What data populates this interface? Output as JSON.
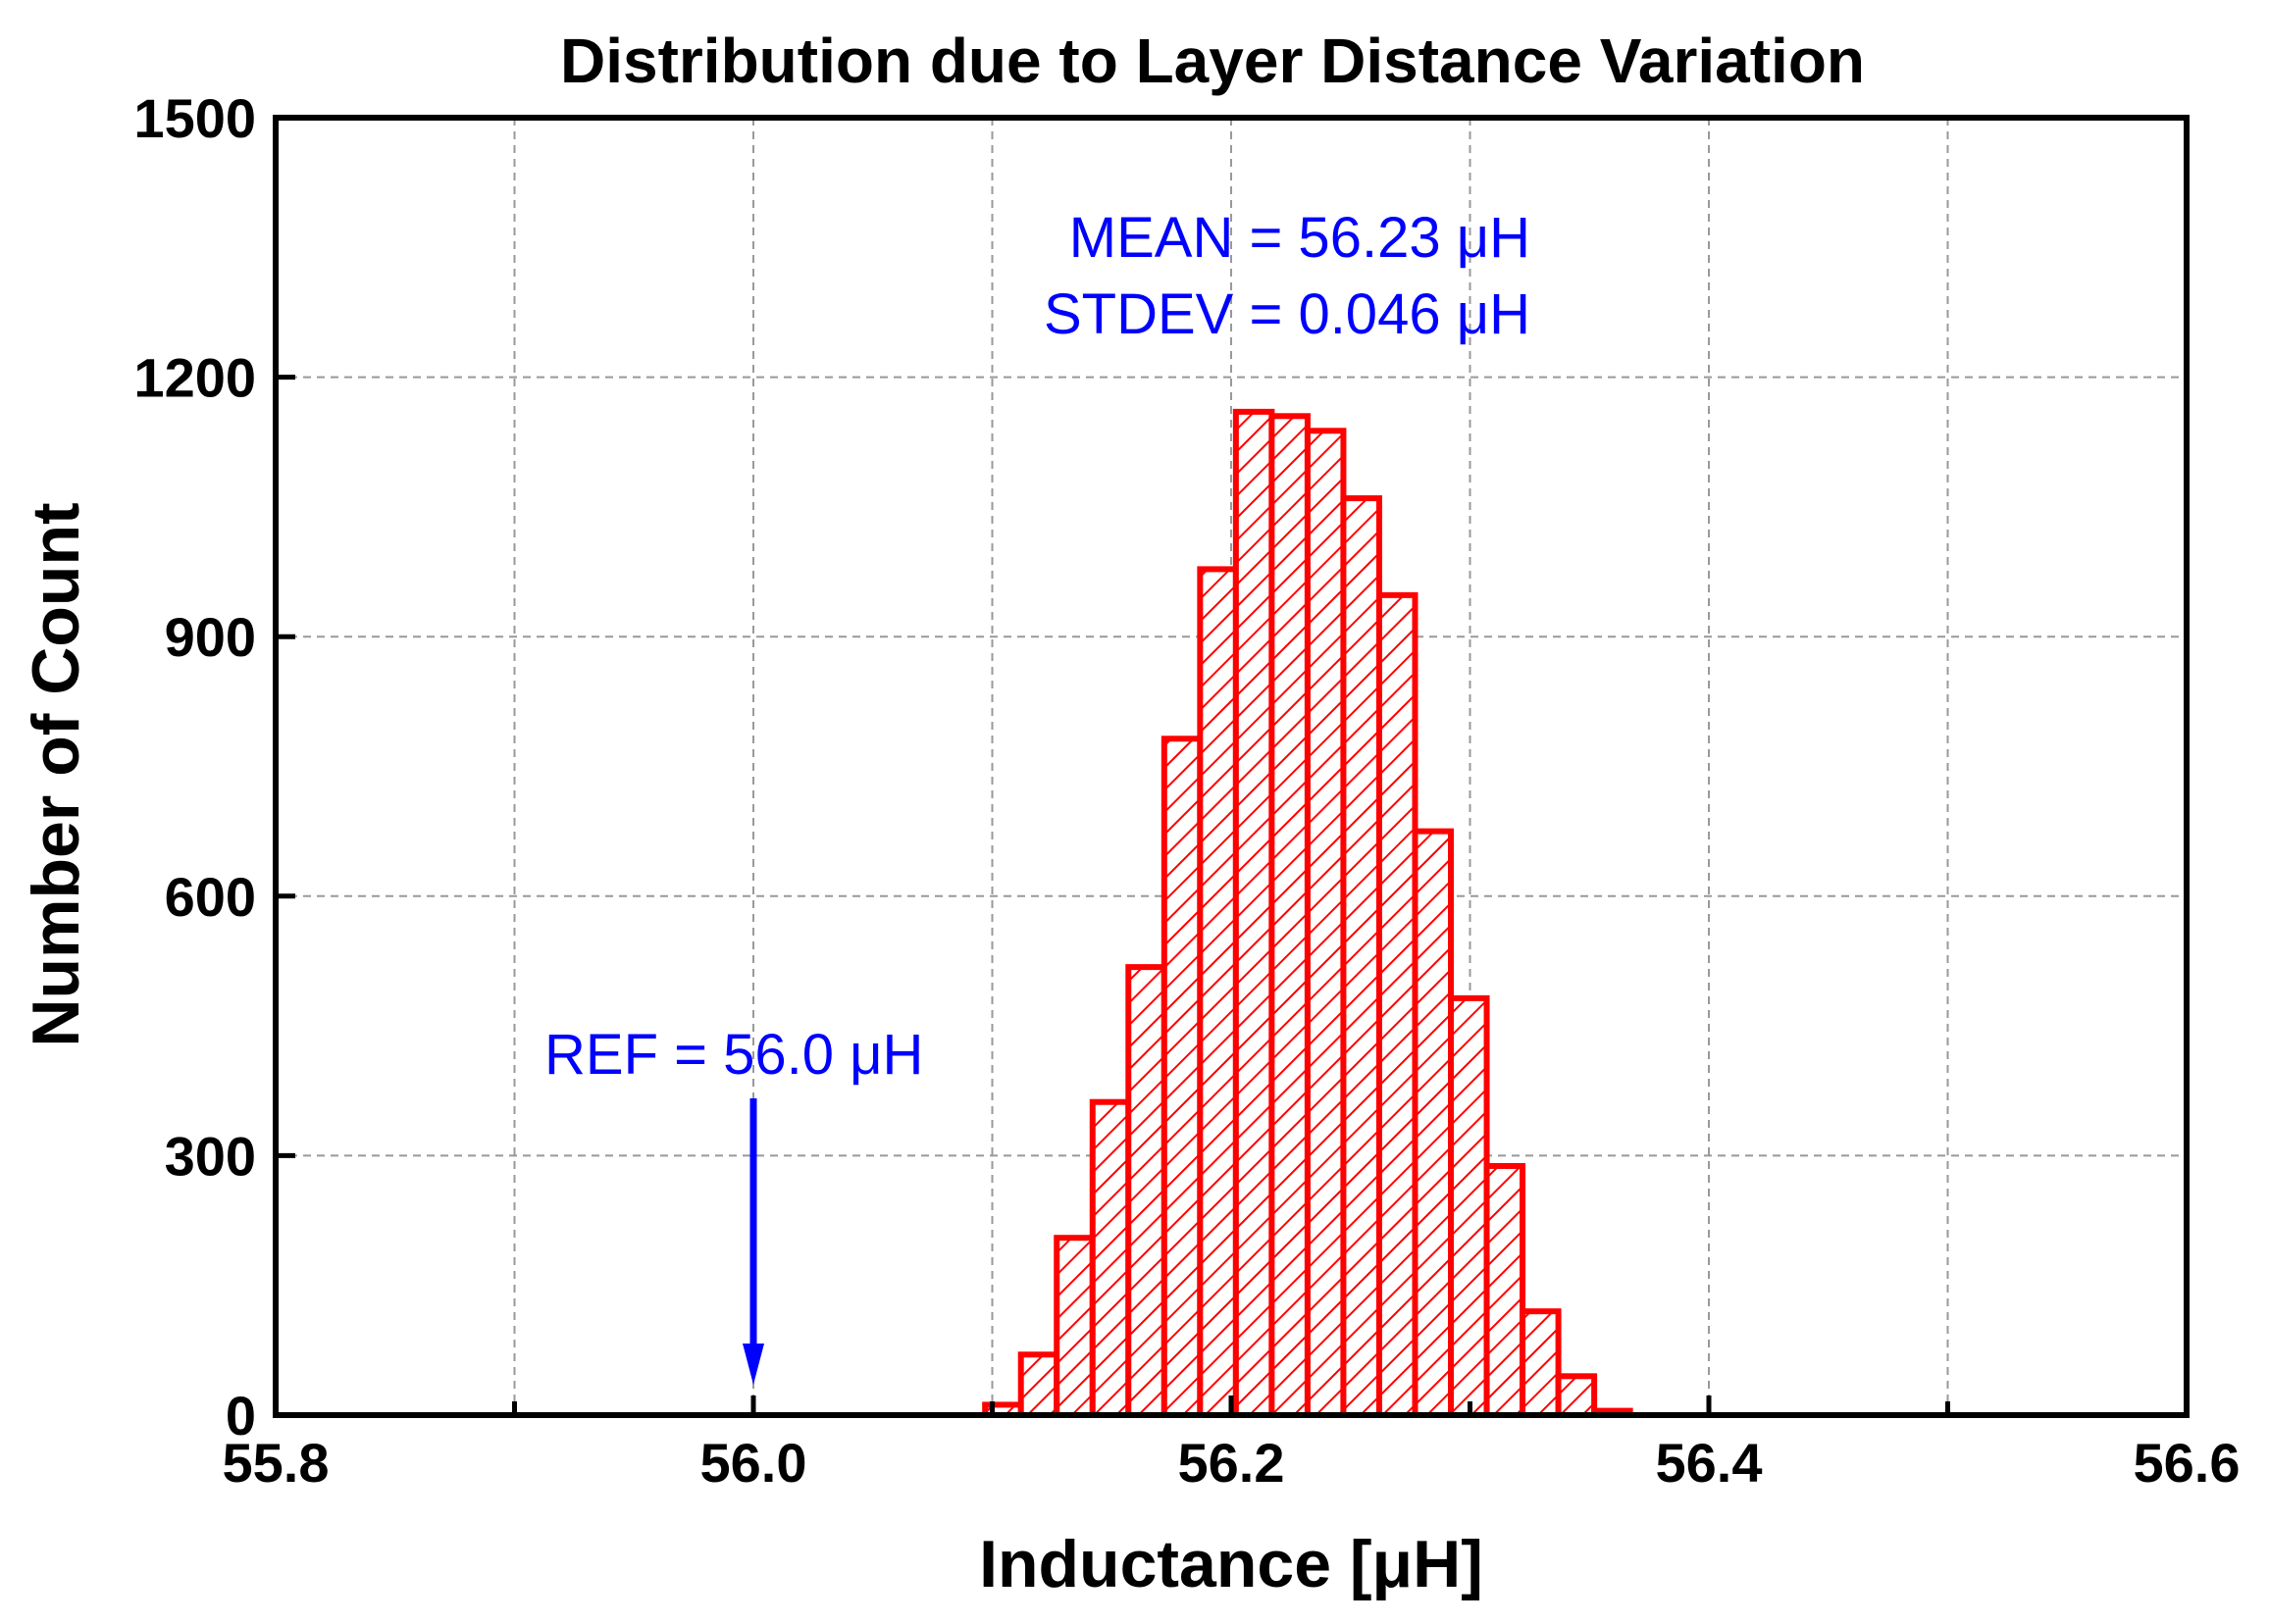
{
  "chart_data": {
    "type": "bar",
    "title": "Distribution due to Layer Distance Variation",
    "xlabel": "Inductance [μH]",
    "ylabel": "Number of Count",
    "xlim": [
      55.8,
      56.6
    ],
    "ylim": [
      0,
      1500
    ],
    "xticks": [
      "55.8",
      "56.0",
      "56.2",
      "56.4",
      "56.6"
    ],
    "xtick_values": [
      55.8,
      56.0,
      56.2,
      56.4,
      56.6
    ],
    "yticks": [
      "0",
      "300",
      "600",
      "900",
      "1200",
      "1500"
    ],
    "ytick_values": [
      0,
      300,
      600,
      900,
      1200,
      1500
    ],
    "grid": true,
    "bar_color": "#ff0000",
    "bin_width": 0.015,
    "bins": [
      {
        "start": 56.097,
        "count": 12
      },
      {
        "start": 56.112,
        "count": 70
      },
      {
        "start": 56.127,
        "count": 205
      },
      {
        "start": 56.142,
        "count": 362
      },
      {
        "start": 56.157,
        "count": 518
      },
      {
        "start": 56.172,
        "count": 782
      },
      {
        "start": 56.187,
        "count": 978
      },
      {
        "start": 56.202,
        "count": 1160
      },
      {
        "start": 56.217,
        "count": 1155
      },
      {
        "start": 56.232,
        "count": 1138
      },
      {
        "start": 56.247,
        "count": 1060
      },
      {
        "start": 56.262,
        "count": 948
      },
      {
        "start": 56.277,
        "count": 675
      },
      {
        "start": 56.292,
        "count": 482
      },
      {
        "start": 56.307,
        "count": 288
      },
      {
        "start": 56.322,
        "count": 120
      },
      {
        "start": 56.337,
        "count": 45
      },
      {
        "start": 56.352,
        "count": 5
      }
    ],
    "annotations": {
      "mean": "MEAN = 56.23 μH",
      "stdev": "STDEV = 0.046 μH",
      "ref": "REF = 56.0 μH"
    },
    "annotation_color": "#0000ff",
    "ref_value": 56.0
  }
}
